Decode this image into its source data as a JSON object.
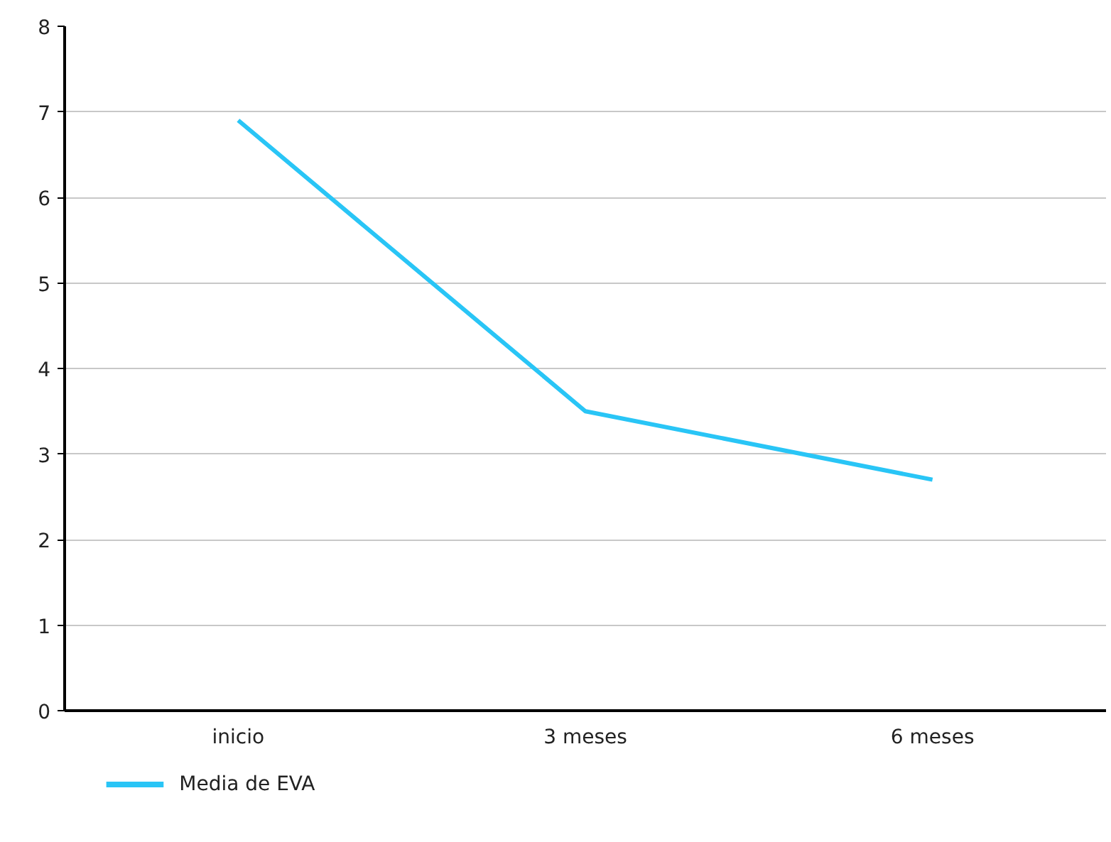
{
  "chart_data": {
    "type": "line",
    "categories": [
      "inicio",
      "3 meses",
      "6 meses"
    ],
    "series": [
      {
        "name": "Media de EVA",
        "color": "#29c5f6",
        "values": [
          6.9,
          3.5,
          2.7
        ]
      }
    ],
    "ylim": [
      0,
      8
    ],
    "yticks": [
      0,
      1,
      2,
      3,
      4,
      5,
      6,
      7,
      8
    ],
    "grid": "y",
    "legend": "bottom",
    "marker": "none",
    "line_style": "solid"
  }
}
